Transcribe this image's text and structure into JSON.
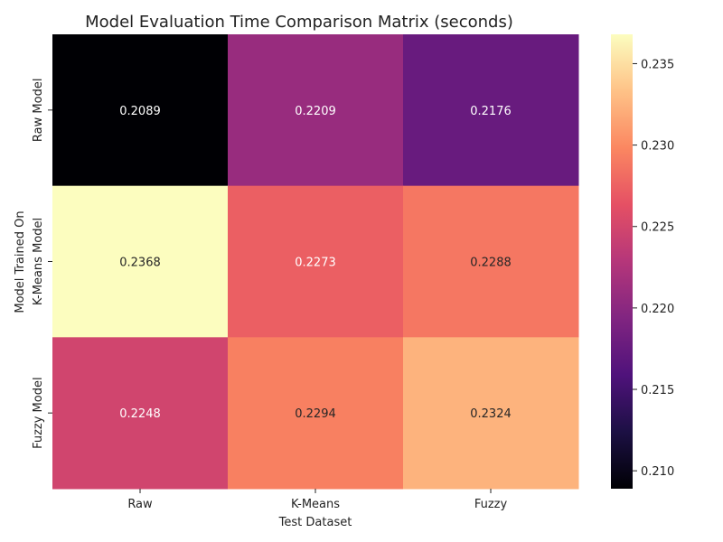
{
  "chart_data": {
    "type": "heatmap",
    "title": "Model Evaluation Time Comparison Matrix (seconds)",
    "xlabel": "Test Dataset",
    "ylabel": "Model Trained On",
    "x_categories": [
      "Raw",
      "K-Means",
      "Fuzzy"
    ],
    "y_categories": [
      "Raw Model",
      "K-Means Model",
      "Fuzzy Model"
    ],
    "values": [
      [
        0.2089,
        0.2209,
        0.2176
      ],
      [
        0.2368,
        0.2273,
        0.2288
      ],
      [
        0.2248,
        0.2294,
        0.2324
      ]
    ],
    "cell_labels": [
      [
        "0.2089",
        "0.2209",
        "0.2176"
      ],
      [
        "0.2368",
        "0.2273",
        "0.2288"
      ],
      [
        "0.2248",
        "0.2294",
        "0.2324"
      ]
    ],
    "colormap": "magma",
    "color_range": [
      0.2089,
      0.2368
    ],
    "colorbar_ticks": [
      "0.210",
      "0.215",
      "0.220",
      "0.225",
      "0.230",
      "0.235"
    ],
    "colorbar_tick_values": [
      0.21,
      0.215,
      0.22,
      0.225,
      0.23,
      0.235
    ]
  }
}
